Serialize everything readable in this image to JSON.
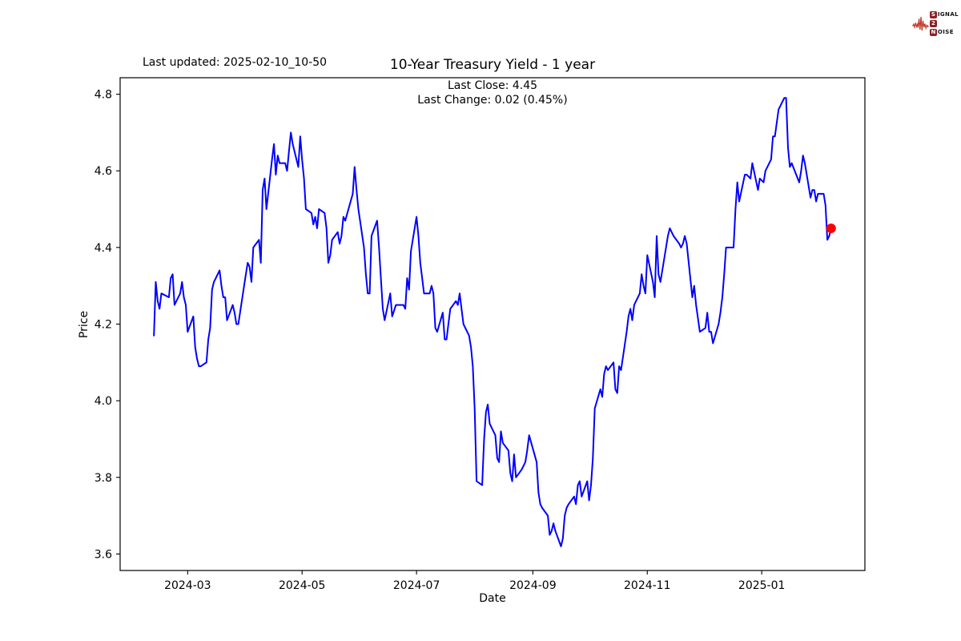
{
  "header": {
    "last_updated": "Last updated: 2025-02-10_10-50",
    "title": "10-Year Treasury Yield - 1 year",
    "subtitle_line1": "Last Close: 4.45",
    "subtitle_line2": "Last Change: 0.02 (0.45%)"
  },
  "logo": {
    "signal_initial": "S",
    "signal_rest": "IGNAL",
    "middle": "2",
    "noise_initial": "N",
    "noise_rest": "OISE",
    "waveform_color": "#c0392b",
    "badge_color": "#8c2026"
  },
  "chart_data": {
    "type": "line",
    "title": "10-Year Treasury Yield - 1 year",
    "xlabel": "Date",
    "ylabel": "Price",
    "legend": "none",
    "grid": false,
    "line_color": "#0000ff",
    "line_width": 2,
    "marker_color": "#ff0000",
    "xlim": [
      "2024-01-25",
      "2025-02-25"
    ],
    "ylim": [
      3.557,
      4.843
    ],
    "yticks": {
      "values": [
        3.6,
        3.8,
        4.0,
        4.2,
        4.4,
        4.6,
        4.8
      ],
      "labels": [
        "3.6",
        "3.8",
        "4.0",
        "4.2",
        "4.4",
        "4.6",
        "4.8"
      ]
    },
    "xticks": {
      "dates": [
        "2024-03-01",
        "2024-05-01",
        "2024-07-01",
        "2024-09-01",
        "2024-11-01",
        "2025-01-01"
      ],
      "labels": [
        "2024-03",
        "2024-05",
        "2024-07",
        "2024-09",
        "2024-11",
        "2025-01"
      ]
    },
    "last_point": {
      "date": "2025-02-07",
      "value": 4.45
    },
    "series": [
      {
        "name": "10-Year Treasury Yield",
        "points": [
          [
            "2024-02-12",
            4.17
          ],
          [
            "2024-02-13",
            4.31
          ],
          [
            "2024-02-14",
            4.26
          ],
          [
            "2024-02-15",
            4.24
          ],
          [
            "2024-02-16",
            4.28
          ],
          [
            "2024-02-20",
            4.27
          ],
          [
            "2024-02-21",
            4.32
          ],
          [
            "2024-02-22",
            4.33
          ],
          [
            "2024-02-23",
            4.25
          ],
          [
            "2024-02-26",
            4.28
          ],
          [
            "2024-02-27",
            4.31
          ],
          [
            "2024-02-28",
            4.27
          ],
          [
            "2024-02-29",
            4.25
          ],
          [
            "2024-03-01",
            4.18
          ],
          [
            "2024-03-04",
            4.22
          ],
          [
            "2024-03-05",
            4.14
          ],
          [
            "2024-03-06",
            4.11
          ],
          [
            "2024-03-07",
            4.09
          ],
          [
            "2024-03-08",
            4.09
          ],
          [
            "2024-03-11",
            4.1
          ],
          [
            "2024-03-12",
            4.16
          ],
          [
            "2024-03-13",
            4.19
          ],
          [
            "2024-03-14",
            4.29
          ],
          [
            "2024-03-15",
            4.31
          ],
          [
            "2024-03-18",
            4.34
          ],
          [
            "2024-03-19",
            4.3
          ],
          [
            "2024-03-20",
            4.27
          ],
          [
            "2024-03-21",
            4.27
          ],
          [
            "2024-03-22",
            4.21
          ],
          [
            "2024-03-25",
            4.25
          ],
          [
            "2024-03-26",
            4.23
          ],
          [
            "2024-03-27",
            4.2
          ],
          [
            "2024-03-28",
            4.2
          ],
          [
            "2024-04-01",
            4.33
          ],
          [
            "2024-04-02",
            4.36
          ],
          [
            "2024-04-03",
            4.35
          ],
          [
            "2024-04-04",
            4.31
          ],
          [
            "2024-04-05",
            4.4
          ],
          [
            "2024-04-08",
            4.42
          ],
          [
            "2024-04-09",
            4.36
          ],
          [
            "2024-04-10",
            4.55
          ],
          [
            "2024-04-11",
            4.58
          ],
          [
            "2024-04-12",
            4.5
          ],
          [
            "2024-04-15",
            4.63
          ],
          [
            "2024-04-16",
            4.67
          ],
          [
            "2024-04-17",
            4.59
          ],
          [
            "2024-04-18",
            4.64
          ],
          [
            "2024-04-19",
            4.62
          ],
          [
            "2024-04-22",
            4.62
          ],
          [
            "2024-04-23",
            4.6
          ],
          [
            "2024-04-24",
            4.65
          ],
          [
            "2024-04-25",
            4.7
          ],
          [
            "2024-04-26",
            4.67
          ],
          [
            "2024-04-29",
            4.61
          ],
          [
            "2024-04-30",
            4.69
          ],
          [
            "2024-05-01",
            4.63
          ],
          [
            "2024-05-02",
            4.58
          ],
          [
            "2024-05-03",
            4.5
          ],
          [
            "2024-05-06",
            4.49
          ],
          [
            "2024-05-07",
            4.46
          ],
          [
            "2024-05-08",
            4.48
          ],
          [
            "2024-05-09",
            4.45
          ],
          [
            "2024-05-10",
            4.5
          ],
          [
            "2024-05-13",
            4.49
          ],
          [
            "2024-05-14",
            4.45
          ],
          [
            "2024-05-15",
            4.36
          ],
          [
            "2024-05-16",
            4.38
          ],
          [
            "2024-05-17",
            4.42
          ],
          [
            "2024-05-20",
            4.44
          ],
          [
            "2024-05-21",
            4.41
          ],
          [
            "2024-05-22",
            4.43
          ],
          [
            "2024-05-23",
            4.48
          ],
          [
            "2024-05-24",
            4.47
          ],
          [
            "2024-05-28",
            4.54
          ],
          [
            "2024-05-29",
            4.61
          ],
          [
            "2024-05-30",
            4.55
          ],
          [
            "2024-05-31",
            4.5
          ],
          [
            "2024-06-03",
            4.4
          ],
          [
            "2024-06-04",
            4.33
          ],
          [
            "2024-06-05",
            4.28
          ],
          [
            "2024-06-06",
            4.28
          ],
          [
            "2024-06-07",
            4.43
          ],
          [
            "2024-06-10",
            4.47
          ],
          [
            "2024-06-11",
            4.4
          ],
          [
            "2024-06-12",
            4.32
          ],
          [
            "2024-06-13",
            4.24
          ],
          [
            "2024-06-14",
            4.21
          ],
          [
            "2024-06-17",
            4.28
          ],
          [
            "2024-06-18",
            4.22
          ],
          [
            "2024-06-20",
            4.25
          ],
          [
            "2024-06-21",
            4.25
          ],
          [
            "2024-06-24",
            4.25
          ],
          [
            "2024-06-25",
            4.24
          ],
          [
            "2024-06-26",
            4.32
          ],
          [
            "2024-06-27",
            4.29
          ],
          [
            "2024-06-28",
            4.39
          ],
          [
            "2024-07-01",
            4.48
          ],
          [
            "2024-07-02",
            4.43
          ],
          [
            "2024-07-03",
            4.36
          ],
          [
            "2024-07-05",
            4.28
          ],
          [
            "2024-07-08",
            4.28
          ],
          [
            "2024-07-09",
            4.3
          ],
          [
            "2024-07-10",
            4.28
          ],
          [
            "2024-07-11",
            4.19
          ],
          [
            "2024-07-12",
            4.18
          ],
          [
            "2024-07-15",
            4.23
          ],
          [
            "2024-07-16",
            4.16
          ],
          [
            "2024-07-17",
            4.16
          ],
          [
            "2024-07-18",
            4.2
          ],
          [
            "2024-07-19",
            4.24
          ],
          [
            "2024-07-22",
            4.26
          ],
          [
            "2024-07-23",
            4.25
          ],
          [
            "2024-07-24",
            4.28
          ],
          [
            "2024-07-25",
            4.24
          ],
          [
            "2024-07-26",
            4.2
          ],
          [
            "2024-07-29",
            4.17
          ],
          [
            "2024-07-30",
            4.14
          ],
          [
            "2024-07-31",
            4.09
          ],
          [
            "2024-08-01",
            3.98
          ],
          [
            "2024-08-02",
            3.79
          ],
          [
            "2024-08-05",
            3.78
          ],
          [
            "2024-08-06",
            3.9
          ],
          [
            "2024-08-07",
            3.97
          ],
          [
            "2024-08-08",
            3.99
          ],
          [
            "2024-08-09",
            3.94
          ],
          [
            "2024-08-12",
            3.91
          ],
          [
            "2024-08-13",
            3.85
          ],
          [
            "2024-08-14",
            3.84
          ],
          [
            "2024-08-15",
            3.92
          ],
          [
            "2024-08-16",
            3.89
          ],
          [
            "2024-08-19",
            3.87
          ],
          [
            "2024-08-20",
            3.81
          ],
          [
            "2024-08-21",
            3.79
          ],
          [
            "2024-08-22",
            3.86
          ],
          [
            "2024-08-23",
            3.8
          ],
          [
            "2024-08-26",
            3.82
          ],
          [
            "2024-08-27",
            3.83
          ],
          [
            "2024-08-28",
            3.84
          ],
          [
            "2024-08-29",
            3.87
          ],
          [
            "2024-08-30",
            3.91
          ],
          [
            "2024-09-03",
            3.84
          ],
          [
            "2024-09-04",
            3.76
          ],
          [
            "2024-09-05",
            3.73
          ],
          [
            "2024-09-06",
            3.72
          ],
          [
            "2024-09-09",
            3.7
          ],
          [
            "2024-09-10",
            3.65
          ],
          [
            "2024-09-11",
            3.66
          ],
          [
            "2024-09-12",
            3.68
          ],
          [
            "2024-09-13",
            3.66
          ],
          [
            "2024-09-16",
            3.62
          ],
          [
            "2024-09-17",
            3.64
          ],
          [
            "2024-09-18",
            3.7
          ],
          [
            "2024-09-19",
            3.72
          ],
          [
            "2024-09-20",
            3.73
          ],
          [
            "2024-09-23",
            3.75
          ],
          [
            "2024-09-24",
            3.73
          ],
          [
            "2024-09-25",
            3.78
          ],
          [
            "2024-09-26",
            3.79
          ],
          [
            "2024-09-27",
            3.75
          ],
          [
            "2024-09-30",
            3.79
          ],
          [
            "2024-10-01",
            3.74
          ],
          [
            "2024-10-02",
            3.78
          ],
          [
            "2024-10-03",
            3.85
          ],
          [
            "2024-10-04",
            3.98
          ],
          [
            "2024-10-07",
            4.03
          ],
          [
            "2024-10-08",
            4.01
          ],
          [
            "2024-10-09",
            4.07
          ],
          [
            "2024-10-10",
            4.09
          ],
          [
            "2024-10-11",
            4.08
          ],
          [
            "2024-10-14",
            4.1
          ],
          [
            "2024-10-15",
            4.03
          ],
          [
            "2024-10-16",
            4.02
          ],
          [
            "2024-10-17",
            4.09
          ],
          [
            "2024-10-18",
            4.08
          ],
          [
            "2024-10-21",
            4.18
          ],
          [
            "2024-10-22",
            4.22
          ],
          [
            "2024-10-23",
            4.24
          ],
          [
            "2024-10-24",
            4.21
          ],
          [
            "2024-10-25",
            4.25
          ],
          [
            "2024-10-28",
            4.28
          ],
          [
            "2024-10-29",
            4.33
          ],
          [
            "2024-10-30",
            4.3
          ],
          [
            "2024-10-31",
            4.28
          ],
          [
            "2024-11-01",
            4.38
          ],
          [
            "2024-11-04",
            4.31
          ],
          [
            "2024-11-05",
            4.27
          ],
          [
            "2024-11-06",
            4.43
          ],
          [
            "2024-11-07",
            4.33
          ],
          [
            "2024-11-08",
            4.31
          ],
          [
            "2024-11-12",
            4.43
          ],
          [
            "2024-11-13",
            4.45
          ],
          [
            "2024-11-14",
            4.44
          ],
          [
            "2024-11-15",
            4.43
          ],
          [
            "2024-11-18",
            4.41
          ],
          [
            "2024-11-19",
            4.4
          ],
          [
            "2024-11-20",
            4.41
          ],
          [
            "2024-11-21",
            4.43
          ],
          [
            "2024-11-22",
            4.41
          ],
          [
            "2024-11-25",
            4.27
          ],
          [
            "2024-11-26",
            4.3
          ],
          [
            "2024-11-27",
            4.25
          ],
          [
            "2024-11-29",
            4.18
          ],
          [
            "2024-12-02",
            4.19
          ],
          [
            "2024-12-03",
            4.23
          ],
          [
            "2024-12-04",
            4.18
          ],
          [
            "2024-12-05",
            4.18
          ],
          [
            "2024-12-06",
            4.15
          ],
          [
            "2024-12-09",
            4.2
          ],
          [
            "2024-12-10",
            4.23
          ],
          [
            "2024-12-11",
            4.27
          ],
          [
            "2024-12-12",
            4.33
          ],
          [
            "2024-12-13",
            4.4
          ],
          [
            "2024-12-16",
            4.4
          ],
          [
            "2024-12-17",
            4.4
          ],
          [
            "2024-12-18",
            4.5
          ],
          [
            "2024-12-19",
            4.57
          ],
          [
            "2024-12-20",
            4.52
          ],
          [
            "2024-12-23",
            4.59
          ],
          [
            "2024-12-24",
            4.59
          ],
          [
            "2024-12-26",
            4.58
          ],
          [
            "2024-12-27",
            4.62
          ],
          [
            "2024-12-30",
            4.55
          ],
          [
            "2024-12-31",
            4.58
          ],
          [
            "2025-01-02",
            4.57
          ],
          [
            "2025-01-03",
            4.6
          ],
          [
            "2025-01-06",
            4.63
          ],
          [
            "2025-01-07",
            4.69
          ],
          [
            "2025-01-08",
            4.69
          ],
          [
            "2025-01-10",
            4.76
          ],
          [
            "2025-01-13",
            4.79
          ],
          [
            "2025-01-14",
            4.79
          ],
          [
            "2025-01-15",
            4.66
          ],
          [
            "2025-01-16",
            4.61
          ],
          [
            "2025-01-17",
            4.62
          ],
          [
            "2025-01-21",
            4.57
          ],
          [
            "2025-01-22",
            4.6
          ],
          [
            "2025-01-23",
            4.64
          ],
          [
            "2025-01-24",
            4.62
          ],
          [
            "2025-01-27",
            4.53
          ],
          [
            "2025-01-28",
            4.55
          ],
          [
            "2025-01-29",
            4.55
          ],
          [
            "2025-01-30",
            4.52
          ],
          [
            "2025-01-31",
            4.54
          ],
          [
            "2025-02-03",
            4.54
          ],
          [
            "2025-02-04",
            4.51
          ],
          [
            "2025-02-05",
            4.42
          ],
          [
            "2025-02-06",
            4.43
          ],
          [
            "2025-02-07",
            4.45
          ]
        ]
      }
    ]
  }
}
